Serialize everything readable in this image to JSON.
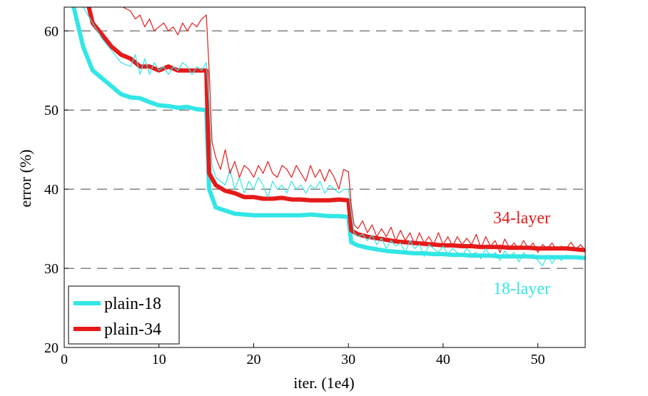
{
  "chart_data": {
    "type": "line",
    "title": "",
    "xlabel": "iter. (1e4)",
    "ylabel": "error (%)",
    "xlim": [
      0,
      55
    ],
    "ylim": [
      20,
      63
    ],
    "xticks": [
      0,
      10,
      20,
      30,
      40,
      50
    ],
    "yticks": [
      20,
      30,
      40,
      50,
      60
    ],
    "grid": "horizontal dashed at 30, 40, 50, 60",
    "legend": {
      "placement": "bottom-left",
      "entries": [
        {
          "label": "plain-18",
          "color": "#33e6e6"
        },
        {
          "label": "plain-34",
          "color": "#e61a1a"
        }
      ]
    },
    "annotations": [
      {
        "text": "34-layer",
        "color": "#e61a1a",
        "x": 45,
        "y": 35.6
      },
      {
        "text": "18-layer",
        "color": "#33e6e6",
        "x": 45,
        "y": 27.5
      }
    ],
    "series": [
      {
        "name": "plain-18 (validation)",
        "color": "#33e6e6",
        "width": "thick",
        "x": [
          1,
          2,
          3,
          4,
          5,
          6,
          7,
          8,
          9,
          10,
          11,
          12,
          13,
          14,
          15,
          15.3,
          16,
          17,
          18,
          19,
          20,
          21,
          22,
          23,
          24,
          25,
          26,
          27,
          28,
          29,
          30,
          30.3,
          31,
          32,
          33,
          34,
          35,
          36,
          37,
          38,
          39,
          40,
          41,
          42,
          43,
          44,
          45,
          46,
          47,
          48,
          49,
          50,
          51,
          52,
          53,
          54,
          55
        ],
        "values": [
          63,
          58,
          55,
          54,
          53,
          52,
          51.6,
          51.5,
          51,
          50.6,
          50.5,
          50.3,
          50.4,
          50.1,
          50,
          40,
          37.7,
          37.3,
          36.9,
          36.8,
          36.7,
          36.7,
          36.7,
          36.7,
          36.7,
          36.7,
          36.8,
          36.7,
          36.6,
          36.6,
          36.5,
          33.3,
          32.9,
          32.6,
          32.4,
          32.2,
          32.1,
          32,
          31.9,
          31.9,
          31.8,
          31.8,
          31.7,
          31.7,
          31.6,
          31.6,
          31.6,
          31.5,
          31.5,
          31.5,
          31.5,
          31.4,
          31.4,
          31.4,
          31.4,
          31.4,
          31.3
        ]
      },
      {
        "name": "plain-34 (validation)",
        "color": "#e61a1a",
        "width": "thick",
        "x": [
          2.6,
          3,
          4,
          5,
          6,
          7,
          8,
          9,
          10,
          11,
          12,
          13,
          14,
          15,
          15.3,
          16,
          17,
          18,
          19,
          20,
          21,
          22,
          23,
          24,
          25,
          26,
          27,
          28,
          29,
          30,
          30.3,
          31,
          32,
          33,
          34,
          35,
          36,
          37,
          38,
          39,
          40,
          41,
          42,
          43,
          44,
          45,
          46,
          47,
          48,
          49,
          50,
          51,
          52,
          53,
          54,
          55
        ],
        "values": [
          63,
          61,
          59.5,
          58,
          57,
          56.5,
          55.5,
          55.5,
          55,
          55.5,
          55,
          55,
          55,
          55,
          42,
          40.5,
          39.8,
          39.5,
          39,
          39,
          38.8,
          38.8,
          38.9,
          38.7,
          38.7,
          38.6,
          38.6,
          38.6,
          38.7,
          38.6,
          34.8,
          34.3,
          34,
          33.8,
          33.6,
          33.4,
          33.3,
          33.2,
          33.1,
          33,
          32.9,
          32.9,
          32.8,
          32.8,
          32.7,
          32.7,
          32.7,
          32.6,
          32.6,
          32.6,
          32.5,
          32.5,
          32.5,
          32.5,
          32.4,
          32.3
        ]
      },
      {
        "name": "plain-18 (training)",
        "color": "#33e6e6",
        "width": "thin",
        "x": [
          2,
          3,
          4,
          5,
          6,
          7,
          7.5,
          8,
          8.5,
          9,
          9.5,
          10,
          10.5,
          11,
          11.5,
          12,
          12.5,
          13,
          13.5,
          14,
          14.5,
          15,
          15.3,
          15.6,
          16,
          16.5,
          17,
          17.5,
          18,
          18.5,
          19,
          19.5,
          20,
          20.5,
          21,
          21.5,
          22,
          22.5,
          23,
          23.5,
          24,
          24.5,
          25,
          25.5,
          26,
          26.5,
          27,
          27.5,
          28,
          28.5,
          29,
          29.5,
          30,
          30.3,
          30.6,
          31,
          31.5,
          32,
          32.5,
          33,
          33.5,
          34,
          34.5,
          35,
          35.5,
          36,
          36.5,
          37,
          37.5,
          38,
          38.5,
          39,
          39.5,
          40,
          40.5,
          41,
          41.5,
          42,
          42.5,
          43,
          43.5,
          44,
          44.5,
          45,
          45.5,
          46,
          46.5,
          47,
          47.5,
          48,
          48.5,
          49,
          49.5,
          50,
          50.5,
          51,
          51.5,
          52,
          52.5,
          53,
          53.5,
          54,
          54.5,
          55
        ],
        "values": [
          63,
          61,
          59,
          57.5,
          56,
          55.5,
          57,
          54.5,
          56.5,
          54.5,
          56,
          55,
          55.5,
          54.5,
          55.5,
          55,
          56,
          55.5,
          54.5,
          55.5,
          55,
          56,
          51,
          43,
          41.5,
          41,
          40.5,
          42.5,
          40,
          41.5,
          39.5,
          41,
          40,
          41.5,
          40.5,
          39,
          41,
          40,
          40.5,
          39.5,
          41,
          40,
          40.5,
          39.5,
          40.5,
          40,
          41,
          39.5,
          40.5,
          40,
          39.5,
          40,
          40,
          37,
          34.5,
          34,
          34.3,
          33.5,
          34.2,
          33,
          33.8,
          32.5,
          33.5,
          32.8,
          33.2,
          32,
          33.5,
          32.5,
          33,
          31.5,
          33,
          32.5,
          32,
          32.8,
          31.8,
          32.5,
          32,
          31.5,
          32.5,
          31.8,
          32,
          31.2,
          32.5,
          31.5,
          32,
          31,
          32.2,
          31.5,
          32,
          30.8,
          32,
          31.3,
          31.8,
          31,
          30.3,
          31.7,
          30.6,
          31.5,
          31,
          31.7,
          31.2,
          31.5,
          31.2,
          31.4
        ]
      },
      {
        "name": "plain-34 (training)",
        "color": "#e61a1a",
        "width": "thin",
        "x": [
          6.2,
          7,
          7.5,
          8,
          8.5,
          9,
          9.5,
          10,
          10.5,
          11,
          11.5,
          12,
          12.5,
          13,
          13.5,
          14,
          14.5,
          15,
          15.3,
          15.6,
          16,
          16.5,
          17,
          17.5,
          18,
          18.5,
          19,
          19.5,
          20,
          20.5,
          21,
          21.5,
          22,
          22.5,
          23,
          23.5,
          24,
          24.5,
          25,
          25.5,
          26,
          26.5,
          27,
          27.5,
          28,
          28.5,
          29,
          29.5,
          30,
          30.3,
          30.6,
          31,
          31.5,
          32,
          32.5,
          33,
          33.5,
          34,
          34.5,
          35,
          35.5,
          36,
          36.5,
          37,
          37.5,
          38,
          38.5,
          39,
          39.5,
          40,
          40.5,
          41,
          41.5,
          42,
          42.5,
          43,
          43.5,
          44,
          44.5,
          45,
          45.5,
          46,
          46.5,
          47,
          47.5,
          48,
          48.5,
          49,
          49.5,
          50,
          50.5,
          51,
          51.5,
          52,
          52.5,
          53,
          53.5,
          54,
          54.5,
          55
        ],
        "values": [
          63,
          62.5,
          61.5,
          62,
          60.5,
          61.5,
          60,
          60.5,
          61,
          60,
          60.5,
          59.5,
          61,
          60,
          61,
          60.5,
          61.5,
          62,
          55,
          46,
          44,
          42.5,
          45,
          42,
          43.5,
          41.5,
          43,
          42.5,
          41.5,
          43,
          42,
          43.5,
          42,
          41.5,
          43,
          42.5,
          41.5,
          43,
          42,
          41,
          43,
          41.5,
          42.5,
          41,
          42.5,
          41.5,
          40,
          42.5,
          42.2,
          38,
          35.5,
          35,
          36,
          34.5,
          35.5,
          34,
          35,
          34,
          35.2,
          33.5,
          34.8,
          33.5,
          34.5,
          33,
          34.5,
          33.2,
          34,
          33,
          34.5,
          33,
          34,
          32.8,
          34,
          33,
          33.8,
          33,
          34.3,
          32.5,
          34,
          32.8,
          33.5,
          32,
          33.7,
          32.6,
          33.2,
          32.4,
          33.5,
          32.5,
          33.2,
          32,
          33,
          32.5,
          33.2,
          32.3,
          32.8,
          32.5,
          33.3,
          32.4,
          33,
          32.3
        ]
      }
    ]
  }
}
